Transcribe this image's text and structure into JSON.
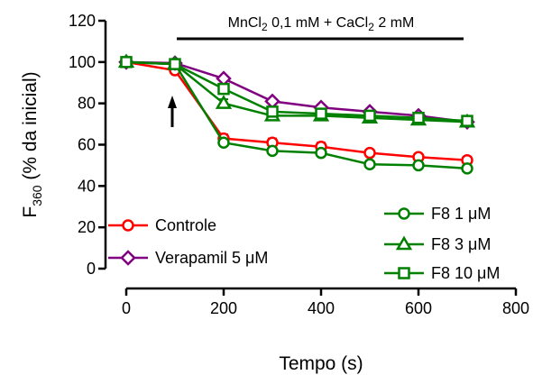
{
  "chart_data": {
    "type": "line",
    "xlabel": "Tempo (s)",
    "ylabel_main": "F",
    "ylabel_sub": "360",
    "ylabel_rest": " (% da inicial)",
    "xlim": [
      0,
      800
    ],
    "ylim": [
      0,
      120
    ],
    "xticks": [
      0,
      200,
      400,
      600,
      800
    ],
    "yticks": [
      0,
      20,
      40,
      60,
      80,
      100,
      120
    ],
    "grid": false,
    "legend_left": "bottom-left",
    "legend_right": "bottom-right",
    "annotation": {
      "parts": [
        "MnCl",
        "2",
        " 0,1 mM + CaCl",
        "2",
        " 2 mM"
      ],
      "x_range": [
        100,
        700
      ]
    },
    "arrow_x": 100,
    "series": [
      {
        "name": "Controle",
        "color": "#ff0000",
        "marker": "circle",
        "x": [
          0,
          100,
          200,
          300,
          400,
          500,
          600,
          700
        ],
        "y": [
          100,
          96,
          63,
          61,
          59,
          56,
          54,
          52.5
        ],
        "err": [
          0,
          0,
          2,
          2,
          2,
          1.5,
          1.5,
          1.5
        ]
      },
      {
        "name": "Verapamil 5 μM",
        "color": "#800080",
        "marker": "diamond",
        "x": [
          0,
          100,
          200,
          300,
          400,
          500,
          600,
          700
        ],
        "y": [
          100,
          99.5,
          92,
          81,
          78,
          76,
          74,
          71
        ],
        "err": [
          0,
          0,
          1,
          1,
          1,
          1,
          1,
          1
        ]
      },
      {
        "name": "F8 1 μM",
        "color": "#008000",
        "marker": "circle",
        "x": [
          0,
          100,
          200,
          300,
          400,
          500,
          600,
          700
        ],
        "y": [
          100,
          99,
          61,
          57,
          56,
          50.5,
          50,
          48.5
        ],
        "err": [
          0,
          0,
          1.5,
          1.5,
          1.5,
          1.5,
          1.5,
          1.5
        ]
      },
      {
        "name": "F8 3 μM",
        "color": "#008000",
        "marker": "triangle",
        "x": [
          0,
          100,
          200,
          300,
          400,
          500,
          600,
          700
        ],
        "y": [
          100,
          99,
          80,
          74,
          74,
          73,
          72,
          71
        ],
        "err": [
          0,
          0,
          2,
          2.5,
          2.5,
          2,
          2,
          2
        ]
      },
      {
        "name": "F8 10 μM",
        "color": "#008000",
        "marker": "square",
        "x": [
          0,
          100,
          200,
          300,
          400,
          500,
          600,
          700
        ],
        "y": [
          100,
          99,
          87,
          76,
          75,
          74,
          73,
          71.5
        ],
        "err": [
          0,
          0,
          2,
          2,
          2,
          2,
          2,
          2
        ]
      }
    ]
  }
}
